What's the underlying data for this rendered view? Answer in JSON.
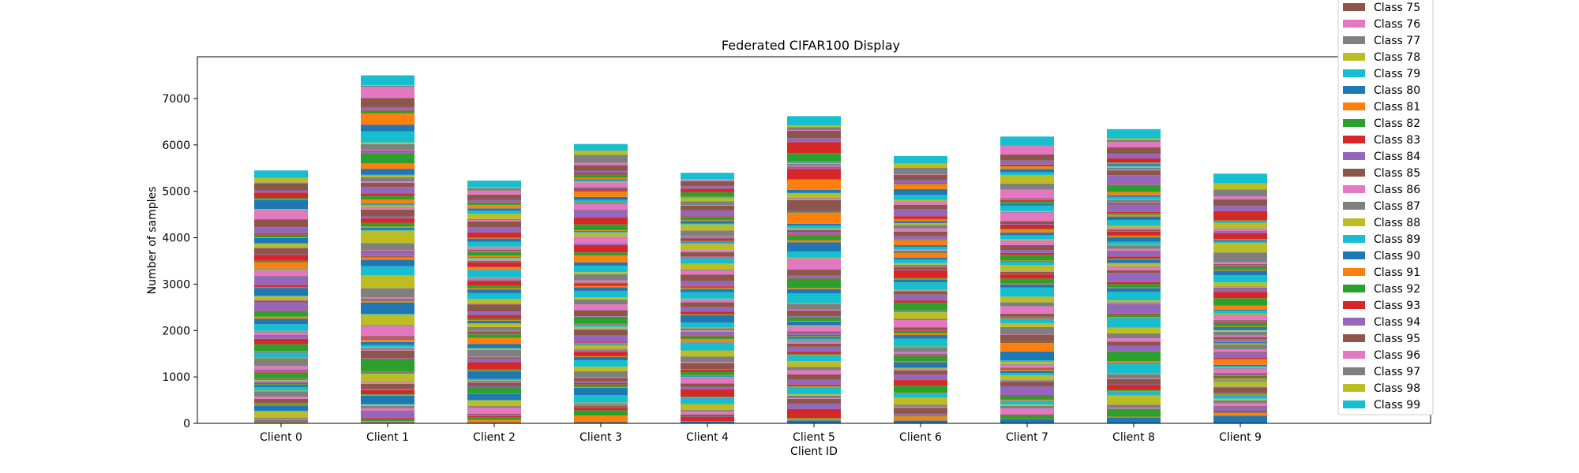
{
  "chart_data": {
    "type": "bar",
    "stacked": true,
    "title": "Federated CIFAR100 Display",
    "xlabel": "Client ID",
    "ylabel": "Number of samples",
    "categories": [
      "Client 0",
      "Client 1",
      "Client 2",
      "Client 3",
      "Client 4",
      "Client 5",
      "Client 6",
      "Client 7",
      "Client 8",
      "Client 9"
    ],
    "totals": [
      5450,
      7500,
      5230,
      6020,
      5400,
      6620,
      5760,
      6180,
      6340,
      5380
    ],
    "ylim": [
      0,
      7900
    ],
    "yticks": [
      0,
      1000,
      2000,
      3000,
      4000,
      5000,
      6000,
      7000
    ],
    "grid": false,
    "legend_position": "right, extending above the plot",
    "palette": [
      "#1f77b4",
      "#ff7f0e",
      "#2ca02c",
      "#d62728",
      "#9467bd",
      "#8c564b",
      "#e377c2",
      "#7f7f7f",
      "#bcbd22",
      "#17becf"
    ],
    "legend": {
      "visible_entries": [
        "Class 75",
        "Class 76",
        "Class 77",
        "Class 78",
        "Class 79",
        "Class 80",
        "Class 81",
        "Class 82",
        "Class 83",
        "Class 84",
        "Class 85",
        "Class 86",
        "Class 87",
        "Class 88",
        "Class 89",
        "Class 90",
        "Class 91",
        "Class 92",
        "Class 93",
        "Class 94",
        "Class 95",
        "Class 96",
        "Class 97",
        "Class 98",
        "Class 99"
      ]
    },
    "series_names": [
      "Class 75",
      "Class 76",
      "Class 77",
      "Class 78",
      "Class 79",
      "Class 80",
      "Class 81",
      "Class 82",
      "Class 83",
      "Class 84",
      "Class 85",
      "Class 86",
      "Class 87",
      "Class 88",
      "Class 89",
      "Class 90",
      "Class 91",
      "Class 92",
      "Class 93",
      "Class 94",
      "Class 95",
      "Class 96",
      "Class 97",
      "Class 98",
      "Class 99"
    ]
  }
}
